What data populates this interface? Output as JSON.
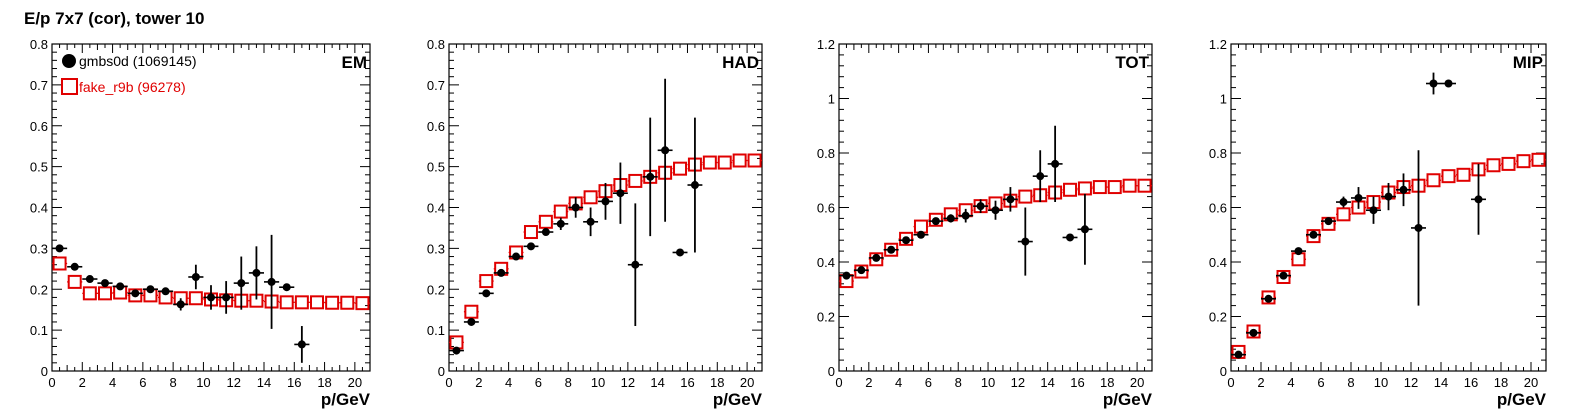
{
  "page": {
    "title": "E/p 7x7 (cor), tower 10"
  },
  "colors": {
    "gmbs": "#000000",
    "fake": "#e00000"
  },
  "legend": [
    {
      "label": "gmbs0d (1069145)",
      "marker": "filled-circle",
      "color": "#000000"
    },
    {
      "label": "fake_r9b (96278)",
      "marker": "open-square",
      "color": "#e00000"
    }
  ],
  "chart_data": [
    {
      "type": "scatter",
      "label": "EM",
      "xlabel": "p/GeV",
      "xlim": [
        0,
        21
      ],
      "ylim": [
        0,
        0.8
      ],
      "xticks": [
        0,
        2,
        4,
        6,
        8,
        10,
        12,
        14,
        16,
        18,
        20
      ],
      "yticks": [
        0,
        0.1,
        0.2,
        0.3,
        0.4,
        0.5,
        0.6,
        0.7,
        0.8
      ],
      "yticklabels": [
        "0",
        "0.1",
        "0.2",
        "0.3",
        "0.4",
        "0.5",
        "0.6",
        "0.7",
        "0.8"
      ],
      "series": [
        {
          "name": "gmbs0d (1069145)",
          "points": [
            {
              "x": 0.5,
              "y": 0.3,
              "err": 0
            },
            {
              "x": 1.5,
              "y": 0.255,
              "err": 0
            },
            {
              "x": 2.5,
              "y": 0.225,
              "err": 0
            },
            {
              "x": 3.5,
              "y": 0.215,
              "err": 0
            },
            {
              "x": 4.5,
              "y": 0.207,
              "err": 0
            },
            {
              "x": 5.5,
              "y": 0.19,
              "err": 0
            },
            {
              "x": 6.5,
              "y": 0.2,
              "err": 0
            },
            {
              "x": 7.5,
              "y": 0.195,
              "err": 0
            },
            {
              "x": 8.5,
              "y": 0.163,
              "err": 0.015
            },
            {
              "x": 9.5,
              "y": 0.23,
              "err": 0.03
            },
            {
              "x": 10.5,
              "y": 0.18,
              "err": 0.03
            },
            {
              "x": 11.5,
              "y": 0.18,
              "err": 0.04
            },
            {
              "x": 12.5,
              "y": 0.215,
              "err": 0.065
            },
            {
              "x": 13.5,
              "y": 0.24,
              "err": 0.065
            },
            {
              "x": 14.5,
              "y": 0.218,
              "err": 0.115
            },
            {
              "x": 15.5,
              "y": 0.205,
              "err": 0
            },
            {
              "x": 16.5,
              "y": 0.065,
              "err": 0.045
            }
          ]
        },
        {
          "name": "fake_r9b (96278)",
          "points": [
            {
              "x": 0.5,
              "y": 0.263
            },
            {
              "x": 1.5,
              "y": 0.218
            },
            {
              "x": 2.5,
              "y": 0.19
            },
            {
              "x": 3.5,
              "y": 0.19
            },
            {
              "x": 4.5,
              "y": 0.192
            },
            {
              "x": 5.5,
              "y": 0.185
            },
            {
              "x": 6.5,
              "y": 0.185
            },
            {
              "x": 7.5,
              "y": 0.18
            },
            {
              "x": 8.5,
              "y": 0.178
            },
            {
              "x": 9.5,
              "y": 0.178
            },
            {
              "x": 10.5,
              "y": 0.175
            },
            {
              "x": 11.5,
              "y": 0.173
            },
            {
              "x": 12.5,
              "y": 0.172
            },
            {
              "x": 13.5,
              "y": 0.172
            },
            {
              "x": 14.5,
              "y": 0.17
            },
            {
              "x": 15.5,
              "y": 0.168
            },
            {
              "x": 16.5,
              "y": 0.168
            },
            {
              "x": 17.5,
              "y": 0.168
            },
            {
              "x": 18.5,
              "y": 0.167
            },
            {
              "x": 19.5,
              "y": 0.167
            },
            {
              "x": 20.5,
              "y": 0.166
            }
          ]
        }
      ]
    },
    {
      "type": "scatter",
      "label": "HAD",
      "xlabel": "p/GeV",
      "xlim": [
        0,
        21
      ],
      "ylim": [
        0,
        0.8
      ],
      "xticks": [
        0,
        2,
        4,
        6,
        8,
        10,
        12,
        14,
        16,
        18,
        20
      ],
      "yticks": [
        0,
        0.1,
        0.2,
        0.3,
        0.4,
        0.5,
        0.6,
        0.7,
        0.8
      ],
      "yticklabels": [
        "0",
        "0.1",
        "0.2",
        "0.3",
        "0.4",
        "0.5",
        "0.6",
        "0.7",
        "0.8"
      ],
      "series": [
        {
          "name": "gmbs0d (1069145)",
          "points": [
            {
              "x": 0.5,
              "y": 0.05,
              "err": 0
            },
            {
              "x": 1.5,
              "y": 0.12,
              "err": 0
            },
            {
              "x": 2.5,
              "y": 0.19,
              "err": 0
            },
            {
              "x": 3.5,
              "y": 0.24,
              "err": 0
            },
            {
              "x": 4.5,
              "y": 0.28,
              "err": 0
            },
            {
              "x": 5.5,
              "y": 0.305,
              "err": 0
            },
            {
              "x": 6.5,
              "y": 0.34,
              "err": 0
            },
            {
              "x": 7.5,
              "y": 0.36,
              "err": 0.015
            },
            {
              "x": 8.5,
              "y": 0.4,
              "err": 0.025
            },
            {
              "x": 9.5,
              "y": 0.365,
              "err": 0.035
            },
            {
              "x": 10.5,
              "y": 0.415,
              "err": 0.045
            },
            {
              "x": 11.5,
              "y": 0.435,
              "err": 0.075
            },
            {
              "x": 12.5,
              "y": 0.26,
              "err": 0.15
            },
            {
              "x": 13.5,
              "y": 0.475,
              "err": 0.145
            },
            {
              "x": 14.5,
              "y": 0.54,
              "err": 0.175
            },
            {
              "x": 15.5,
              "y": 0.29,
              "err": 0
            },
            {
              "x": 16.5,
              "y": 0.455,
              "err": 0.165
            }
          ]
        },
        {
          "name": "fake_r9b (96278)",
          "points": [
            {
              "x": 0.5,
              "y": 0.07
            },
            {
              "x": 1.5,
              "y": 0.145
            },
            {
              "x": 2.5,
              "y": 0.22
            },
            {
              "x": 3.5,
              "y": 0.25
            },
            {
              "x": 4.5,
              "y": 0.29
            },
            {
              "x": 5.5,
              "y": 0.34
            },
            {
              "x": 6.5,
              "y": 0.365
            },
            {
              "x": 7.5,
              "y": 0.39
            },
            {
              "x": 8.5,
              "y": 0.41
            },
            {
              "x": 9.5,
              "y": 0.425
            },
            {
              "x": 10.5,
              "y": 0.44
            },
            {
              "x": 11.5,
              "y": 0.455
            },
            {
              "x": 12.5,
              "y": 0.465
            },
            {
              "x": 13.5,
              "y": 0.475
            },
            {
              "x": 14.5,
              "y": 0.485
            },
            {
              "x": 15.5,
              "y": 0.495
            },
            {
              "x": 16.5,
              "y": 0.505
            },
            {
              "x": 17.5,
              "y": 0.51
            },
            {
              "x": 18.5,
              "y": 0.51
            },
            {
              "x": 19.5,
              "y": 0.515
            },
            {
              "x": 20.5,
              "y": 0.515
            }
          ]
        }
      ]
    },
    {
      "type": "scatter",
      "label": "TOT",
      "xlabel": "p/GeV",
      "xlim": [
        0,
        21
      ],
      "ylim": [
        0,
        1.2
      ],
      "xticks": [
        0,
        2,
        4,
        6,
        8,
        10,
        12,
        14,
        16,
        18,
        20
      ],
      "yticks": [
        0,
        0.2,
        0.4,
        0.6,
        0.8,
        1.0,
        1.2
      ],
      "yticklabels": [
        "0",
        "0.2",
        "0.4",
        "0.6",
        "0.8",
        "1",
        "1.2"
      ],
      "series": [
        {
          "name": "gmbs0d (1069145)",
          "points": [
            {
              "x": 0.5,
              "y": 0.35,
              "err": 0
            },
            {
              "x": 1.5,
              "y": 0.37,
              "err": 0
            },
            {
              "x": 2.5,
              "y": 0.415,
              "err": 0
            },
            {
              "x": 3.5,
              "y": 0.445,
              "err": 0
            },
            {
              "x": 4.5,
              "y": 0.48,
              "err": 0
            },
            {
              "x": 5.5,
              "y": 0.5,
              "err": 0
            },
            {
              "x": 6.5,
              "y": 0.55,
              "err": 0
            },
            {
              "x": 7.5,
              "y": 0.56,
              "err": 0.015
            },
            {
              "x": 8.5,
              "y": 0.57,
              "err": 0.025
            },
            {
              "x": 9.5,
              "y": 0.605,
              "err": 0.025
            },
            {
              "x": 10.5,
              "y": 0.59,
              "err": 0.035
            },
            {
              "x": 11.5,
              "y": 0.63,
              "err": 0.045
            },
            {
              "x": 12.5,
              "y": 0.475,
              "err": 0.125
            },
            {
              "x": 13.5,
              "y": 0.715,
              "err": 0.095
            },
            {
              "x": 14.5,
              "y": 0.76,
              "err": 0.14
            },
            {
              "x": 15.5,
              "y": 0.49,
              "err": 0
            },
            {
              "x": 16.5,
              "y": 0.52,
              "err": 0.13
            }
          ]
        },
        {
          "name": "fake_r9b (96278)",
          "points": [
            {
              "x": 0.5,
              "y": 0.33
            },
            {
              "x": 1.5,
              "y": 0.365
            },
            {
              "x": 2.5,
              "y": 0.41
            },
            {
              "x": 3.5,
              "y": 0.445
            },
            {
              "x": 4.5,
              "y": 0.485
            },
            {
              "x": 5.5,
              "y": 0.53
            },
            {
              "x": 6.5,
              "y": 0.555
            },
            {
              "x": 7.5,
              "y": 0.575
            },
            {
              "x": 8.5,
              "y": 0.59
            },
            {
              "x": 9.5,
              "y": 0.605
            },
            {
              "x": 10.5,
              "y": 0.615
            },
            {
              "x": 11.5,
              "y": 0.625
            },
            {
              "x": 12.5,
              "y": 0.64
            },
            {
              "x": 13.5,
              "y": 0.645
            },
            {
              "x": 14.5,
              "y": 0.655
            },
            {
              "x": 15.5,
              "y": 0.665
            },
            {
              "x": 16.5,
              "y": 0.67
            },
            {
              "x": 17.5,
              "y": 0.675
            },
            {
              "x": 18.5,
              "y": 0.675
            },
            {
              "x": 19.5,
              "y": 0.68
            },
            {
              "x": 20.5,
              "y": 0.68
            }
          ]
        }
      ]
    },
    {
      "type": "scatter",
      "label": "MIP",
      "xlabel": "p/GeV",
      "xlim": [
        0,
        21
      ],
      "ylim": [
        0,
        1.2
      ],
      "xticks": [
        0,
        2,
        4,
        6,
        8,
        10,
        12,
        14,
        16,
        18,
        20
      ],
      "yticks": [
        0,
        0.2,
        0.4,
        0.6,
        0.8,
        1.0,
        1.2
      ],
      "yticklabels": [
        "0",
        "0.2",
        "0.4",
        "0.6",
        "0.8",
        "1",
        "1.2"
      ],
      "series": [
        {
          "name": "gmbs0d (1069145)",
          "points": [
            {
              "x": 0.5,
              "y": 0.06,
              "err": 0
            },
            {
              "x": 1.5,
              "y": 0.14,
              "err": 0
            },
            {
              "x": 2.5,
              "y": 0.265,
              "err": 0
            },
            {
              "x": 3.5,
              "y": 0.35,
              "err": 0
            },
            {
              "x": 4.5,
              "y": 0.44,
              "err": 0
            },
            {
              "x": 5.5,
              "y": 0.5,
              "err": 0
            },
            {
              "x": 6.5,
              "y": 0.55,
              "err": 0
            },
            {
              "x": 7.5,
              "y": 0.62,
              "err": 0.02
            },
            {
              "x": 8.5,
              "y": 0.635,
              "err": 0.04
            },
            {
              "x": 9.5,
              "y": 0.59,
              "err": 0.05
            },
            {
              "x": 10.5,
              "y": 0.64,
              "err": 0.05
            },
            {
              "x": 11.5,
              "y": 0.665,
              "err": 0.06
            },
            {
              "x": 12.5,
              "y": 0.525,
              "err": 0.285
            },
            {
              "x": 13.5,
              "y": 1.055,
              "err": 0.04
            },
            {
              "x": 14.5,
              "y": 1.055,
              "err": 0
            },
            {
              "x": 16.5,
              "y": 0.63,
              "err": 0.13
            }
          ]
        },
        {
          "name": "fake_r9b (96278)",
          "points": [
            {
              "x": 0.5,
              "y": 0.07
            },
            {
              "x": 1.5,
              "y": 0.145
            },
            {
              "x": 2.5,
              "y": 0.27
            },
            {
              "x": 3.5,
              "y": 0.345
            },
            {
              "x": 4.5,
              "y": 0.41
            },
            {
              "x": 5.5,
              "y": 0.495
            },
            {
              "x": 6.5,
              "y": 0.54
            },
            {
              "x": 7.5,
              "y": 0.575
            },
            {
              "x": 8.5,
              "y": 0.6
            },
            {
              "x": 9.5,
              "y": 0.62
            },
            {
              "x": 10.5,
              "y": 0.655
            },
            {
              "x": 11.5,
              "y": 0.675
            },
            {
              "x": 12.5,
              "y": 0.68
            },
            {
              "x": 13.5,
              "y": 0.7
            },
            {
              "x": 14.5,
              "y": 0.715
            },
            {
              "x": 15.5,
              "y": 0.72
            },
            {
              "x": 16.5,
              "y": 0.74
            },
            {
              "x": 17.5,
              "y": 0.755
            },
            {
              "x": 18.5,
              "y": 0.76
            },
            {
              "x": 19.5,
              "y": 0.77
            },
            {
              "x": 20.5,
              "y": 0.775
            }
          ]
        }
      ]
    }
  ]
}
